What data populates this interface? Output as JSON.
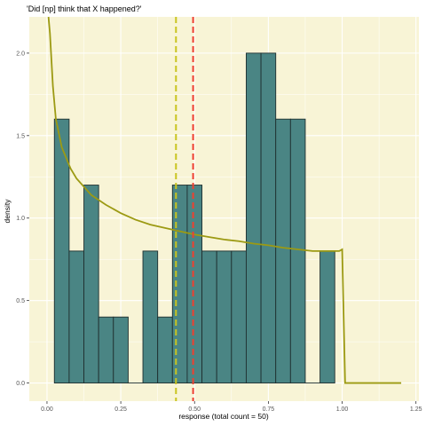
{
  "chart_data": {
    "type": "bar",
    "title": "'Did [np] think that X happened?'",
    "xlabel": "response (total count = 50)",
    "ylabel": "density",
    "xlim": [
      -0.06,
      1.26
    ],
    "ylim": [
      -0.11,
      2.22
    ],
    "x_ticks": [
      "0.00",
      "0.25",
      "0.50",
      "0.75",
      "1.00",
      "1.25"
    ],
    "x_tick_values": [
      0,
      0.25,
      0.5,
      0.75,
      1.0,
      1.25
    ],
    "y_ticks": [
      "0.0",
      "0.5",
      "1.0",
      "1.5",
      "2.0"
    ],
    "y_tick_values": [
      0,
      0.5,
      1.0,
      1.5,
      2.0
    ],
    "grid": true,
    "bin_width": 0.05,
    "bins": [
      {
        "x_start": 0.025,
        "density": 1.6
      },
      {
        "x_start": 0.075,
        "density": 0.8
      },
      {
        "x_start": 0.125,
        "density": 1.2
      },
      {
        "x_start": 0.175,
        "density": 0.4
      },
      {
        "x_start": 0.225,
        "density": 0.4
      },
      {
        "x_start": 0.275,
        "density": 0.0
      },
      {
        "x_start": 0.325,
        "density": 0.8
      },
      {
        "x_start": 0.375,
        "density": 0.4
      },
      {
        "x_start": 0.425,
        "density": 1.2
      },
      {
        "x_start": 0.475,
        "density": 1.2
      },
      {
        "x_start": 0.525,
        "density": 0.8
      },
      {
        "x_start": 0.575,
        "density": 0.8
      },
      {
        "x_start": 0.625,
        "density": 0.8
      },
      {
        "x_start": 0.675,
        "density": 2.0
      },
      {
        "x_start": 0.725,
        "density": 2.0
      },
      {
        "x_start": 0.775,
        "density": 1.6
      },
      {
        "x_start": 0.825,
        "density": 1.6
      },
      {
        "x_start": 0.875,
        "density": 0.0
      },
      {
        "x_start": 0.925,
        "density": 0.8
      }
    ],
    "density_curve": {
      "x": [
        0.005,
        0.01,
        0.02,
        0.03,
        0.05,
        0.08,
        0.1,
        0.15,
        0.2,
        0.25,
        0.3,
        0.35,
        0.4,
        0.45,
        0.5,
        0.55,
        0.6,
        0.65,
        0.7,
        0.75,
        0.8,
        0.85,
        0.9,
        0.95,
        0.99,
        1.0,
        1.01,
        1.2
      ],
      "y": [
        2.22,
        2.12,
        1.8,
        1.6,
        1.43,
        1.3,
        1.24,
        1.14,
        1.08,
        1.03,
        0.99,
        0.96,
        0.94,
        0.92,
        0.9,
        0.885,
        0.87,
        0.86,
        0.845,
        0.835,
        0.82,
        0.81,
        0.8,
        0.8,
        0.8,
        0.81,
        0.0,
        0.0
      ]
    },
    "vlines": [
      {
        "x": 0.437,
        "color": "#c9c41f",
        "style": "dashed"
      },
      {
        "x": 0.495,
        "color": "#ee4030",
        "style": "dashed"
      }
    ],
    "colors": {
      "panel": "#f8f4d6",
      "grid": "#ffffff",
      "bar_fill": "#4a8584",
      "bar_stroke": "#1f2f2f",
      "curve": "#9c9a13",
      "text": "#333333",
      "tick_text": "#555555"
    }
  }
}
